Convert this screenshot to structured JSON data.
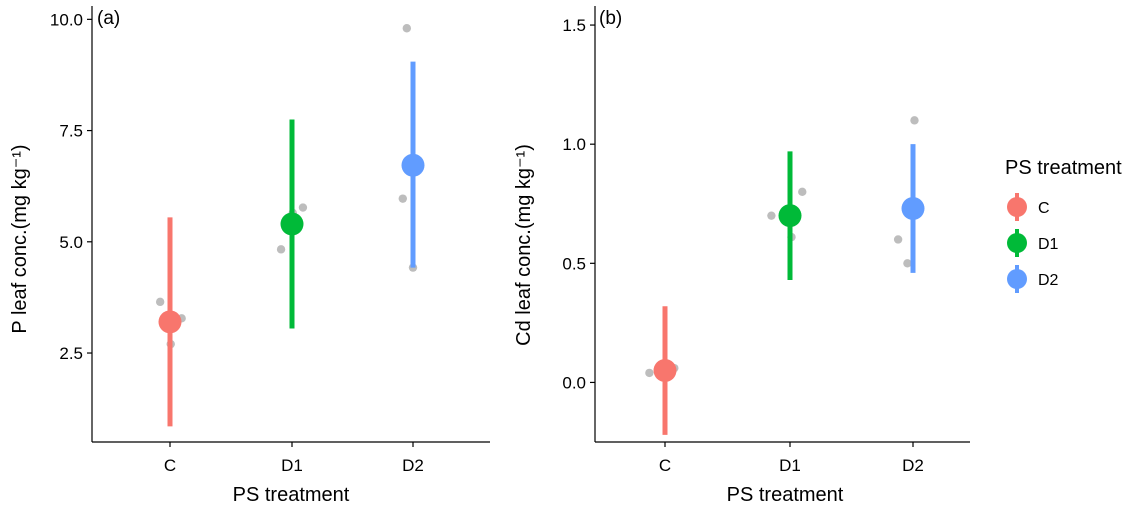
{
  "chart_data": [
    {
      "type": "scatter",
      "panel_label": "(a)",
      "xlabel": "PS treatment",
      "ylabel": "P leaf conc.(mg  kg⁻¹)",
      "categories": [
        "C",
        "D1",
        "D2"
      ],
      "ylim": [
        0.5,
        10.3
      ],
      "yticks": [
        2.5,
        5.0,
        7.5,
        10.0
      ],
      "ytick_labels": [
        "2.5",
        "5.0",
        "7.5",
        "10.0"
      ],
      "grid": false,
      "means": [
        {
          "category": "C",
          "mean": 3.2,
          "lower": 0.85,
          "upper": 5.55
        },
        {
          "category": "D1",
          "mean": 5.4,
          "lower": 3.05,
          "upper": 7.75
        },
        {
          "category": "D2",
          "mean": 6.72,
          "lower": 4.42,
          "upper": 9.05
        }
      ],
      "raw_points": [
        {
          "category": "C",
          "offset": -0.27,
          "y": 3.65
        },
        {
          "category": "C",
          "offset": 0.02,
          "y": 2.7
        },
        {
          "category": "C",
          "offset": 0.32,
          "y": 3.28
        },
        {
          "category": "D1",
          "offset": -0.3,
          "y": 4.83
        },
        {
          "category": "D1",
          "offset": 0.02,
          "y": 5.65
        },
        {
          "category": "D1",
          "offset": 0.3,
          "y": 5.77
        },
        {
          "category": "D2",
          "offset": -0.28,
          "y": 5.97
        },
        {
          "category": "D2",
          "offset": 0.0,
          "y": 4.42
        },
        {
          "category": "D2",
          "offset": -0.17,
          "y": 9.8
        }
      ]
    },
    {
      "type": "scatter",
      "panel_label": "(b)",
      "xlabel": "PS treatment",
      "ylabel": "Cd leaf conc.(mg  kg⁻¹)",
      "categories": [
        "C",
        "D1",
        "D2"
      ],
      "ylim": [
        -0.25,
        1.58
      ],
      "yticks": [
        0.0,
        0.5,
        1.0,
        1.5
      ],
      "ytick_labels": [
        "0.0",
        "0.5",
        "1.0",
        "1.5"
      ],
      "grid": false,
      "means": [
        {
          "category": "C",
          "mean": 0.05,
          "lower": -0.22,
          "upper": 0.32
        },
        {
          "category": "D1",
          "mean": 0.7,
          "lower": 0.43,
          "upper": 0.97
        },
        {
          "category": "D2",
          "mean": 0.73,
          "lower": 0.46,
          "upper": 1.0
        }
      ],
      "raw_points": [
        {
          "category": "C",
          "offset": -0.42,
          "y": 0.04
        },
        {
          "category": "C",
          "offset": 0.08,
          "y": 0.05
        },
        {
          "category": "C",
          "offset": 0.25,
          "y": 0.06
        },
        {
          "category": "D1",
          "offset": -0.5,
          "y": 0.7
        },
        {
          "category": "D1",
          "offset": 0.04,
          "y": 0.61
        },
        {
          "category": "D1",
          "offset": 0.33,
          "y": 0.8
        },
        {
          "category": "D2",
          "offset": -0.4,
          "y": 0.6
        },
        {
          "category": "D2",
          "offset": -0.15,
          "y": 0.5
        },
        {
          "category": "D2",
          "offset": 0.04,
          "y": 1.1
        }
      ]
    }
  ],
  "legend": {
    "title": "PS treatment",
    "placement": "right",
    "items": [
      {
        "label": "C",
        "color": "#F8766D"
      },
      {
        "label": "D1",
        "color": "#00BA38"
      },
      {
        "label": "D2",
        "color": "#619CFF"
      }
    ]
  },
  "raw_point_color": "#BDBDBD"
}
